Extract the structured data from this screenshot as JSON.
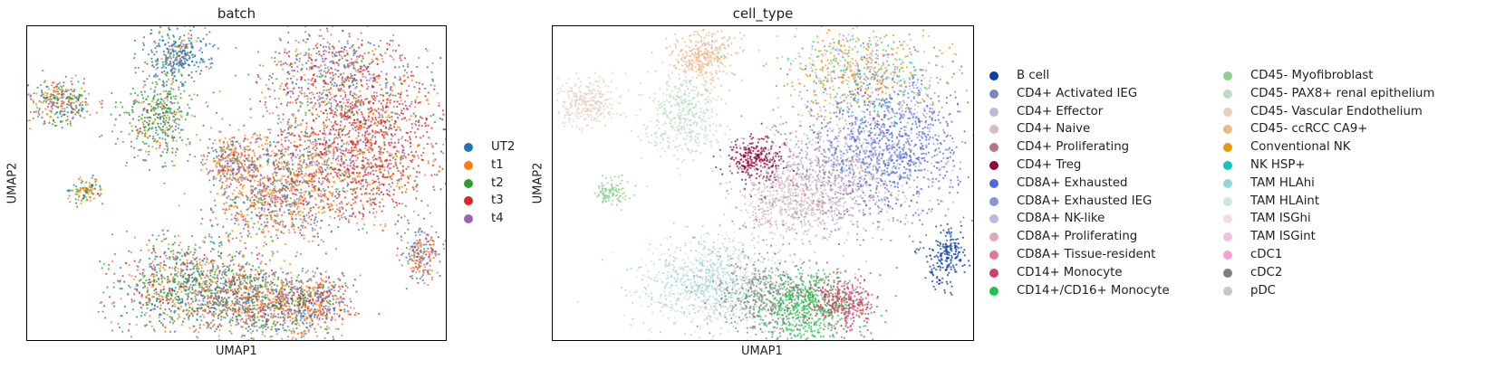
{
  "chart_data": [
    {
      "type": "scatter",
      "title": "batch",
      "xlabel": "UMAP1",
      "ylabel": "UMAP2",
      "grid": false,
      "ticks": false,
      "legend_placement": "right",
      "legend": [
        {
          "label": "UT2",
          "color": "#1f77b4"
        },
        {
          "label": "t1",
          "color": "#ff7f0e"
        },
        {
          "label": "t2",
          "color": "#2ca02c"
        },
        {
          "label": "t3",
          "color": "#d62728"
        },
        {
          "label": "t4",
          "color": "#9467bd"
        }
      ]
    },
    {
      "type": "scatter",
      "title": "cell_type",
      "xlabel": "UMAP1",
      "ylabel": "UMAP2",
      "grid": false,
      "ticks": false,
      "legend_placement": "right",
      "legend": [
        {
          "label": "B cell",
          "color": "#0b3fa0"
        },
        {
          "label": "CD4+ Activated IEG",
          "color": "#7b89b9"
        },
        {
          "label": "CD4+ Effector",
          "color": "#b7bdd6"
        },
        {
          "label": "CD4+ Naive",
          "color": "#d6bcc3"
        },
        {
          "label": "CD4+ Proliferating",
          "color": "#b6747e"
        },
        {
          "label": "CD4+ Treg",
          "color": "#8e0a3c"
        },
        {
          "label": "CD8A+ Exhausted",
          "color": "#4f6bd8"
        },
        {
          "label": "CD8A+ Exhausted IEG",
          "color": "#8495d8"
        },
        {
          "label": "CD8A+ NK-like",
          "color": "#b4bbe0"
        },
        {
          "label": "CD8A+ Proliferating",
          "color": "#e4a8b3"
        },
        {
          "label": "CD8A+ Tissue-resident",
          "color": "#de7b8e"
        },
        {
          "label": "CD14+ Monocyte",
          "color": "#d23e68"
        },
        {
          "label": "CD14+/CD16+ Monocyte",
          "color": "#1ec545"
        },
        {
          "label": "CD45- Myofibroblast",
          "color": "#8ed08e"
        },
        {
          "label": "CD45- PAX8+ renal epithelium",
          "color": "#bfdcc4"
        },
        {
          "label": "CD45- Vascular Endothelium",
          "color": "#e8cfc2"
        },
        {
          "label": "CD45- ccRCC CA9+",
          "color": "#edb78c"
        },
        {
          "label": "Conventional NK",
          "color": "#e99810"
        },
        {
          "label": "NK HSP+",
          "color": "#12c3c3"
        },
        {
          "label": "TAM HLAhi",
          "color": "#97d7d0"
        },
        {
          "label": "TAM HLAint",
          "color": "#cde6e1"
        },
        {
          "label": "TAM ISGhi",
          "color": "#efdee6"
        },
        {
          "label": "TAM ISGint",
          "color": "#f1bedb"
        },
        {
          "label": "cDC1",
          "color": "#f3a2d2"
        },
        {
          "label": "cDC2",
          "color": "#7f7f7f"
        },
        {
          "label": "pDC",
          "color": "#c7c7c7"
        }
      ]
    }
  ]
}
